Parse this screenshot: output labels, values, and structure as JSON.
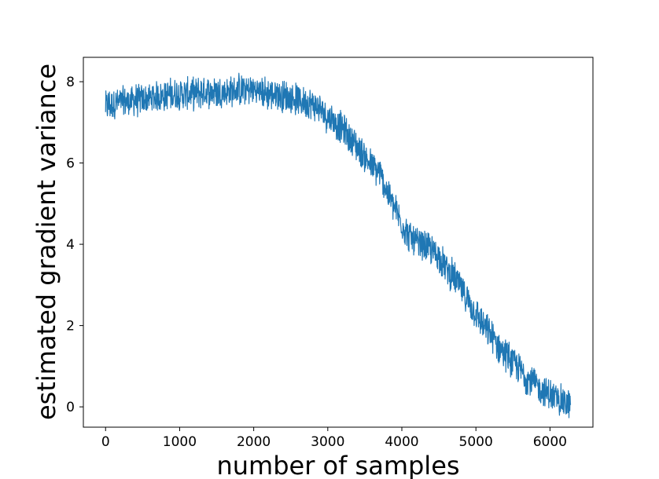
{
  "chart_data": {
    "type": "line",
    "title": "",
    "xlabel": "number of samples",
    "ylabel": "estimated gradient variance",
    "xlim": [
      -300,
      6580
    ],
    "ylim": [
      -0.5,
      8.6
    ],
    "xticks": [
      0,
      1000,
      2000,
      3000,
      4000,
      5000,
      6000
    ],
    "yticks": [
      0,
      2,
      4,
      6,
      8
    ],
    "grid": false,
    "legend": "none",
    "series_color": "#1f77b4",
    "series": [
      {
        "x": [
          0,
          100,
          200,
          300,
          400,
          500,
          600,
          700,
          800,
          900,
          1000,
          1100,
          1200,
          1300,
          1400,
          1500,
          1600,
          1700,
          1800,
          1900,
          2000,
          2100,
          2200,
          2300,
          2400,
          2500,
          2600,
          2700,
          2800,
          2900,
          3000,
          3100,
          3200,
          3300,
          3400,
          3500,
          3600,
          3700,
          3800,
          3900,
          4000,
          4100,
          4200,
          4300,
          4400,
          4500,
          4600,
          4700,
          4800,
          4900,
          5000,
          5100,
          5200,
          5300,
          5400,
          5500,
          5600,
          5700,
          5800,
          5900,
          6000,
          6100,
          6200,
          6280
        ],
        "y": [
          7.4,
          7.45,
          7.5,
          7.5,
          7.55,
          7.55,
          7.6,
          7.65,
          7.65,
          7.7,
          7.7,
          7.7,
          7.7,
          7.75,
          7.75,
          7.75,
          7.75,
          7.75,
          7.8,
          7.8,
          7.8,
          7.75,
          7.7,
          7.7,
          7.65,
          7.6,
          7.55,
          7.5,
          7.45,
          7.3,
          7.15,
          7.0,
          6.85,
          6.6,
          6.4,
          6.15,
          5.9,
          5.75,
          5.3,
          4.9,
          4.5,
          4.2,
          4.0,
          3.95,
          3.85,
          3.7,
          3.4,
          3.2,
          2.9,
          2.6,
          2.3,
          2.0,
          1.75,
          1.5,
          1.3,
          1.1,
          0.9,
          0.7,
          0.55,
          0.4,
          0.3,
          0.2,
          0.1,
          0.05
        ],
        "noise_band": 0.45
      }
    ]
  }
}
